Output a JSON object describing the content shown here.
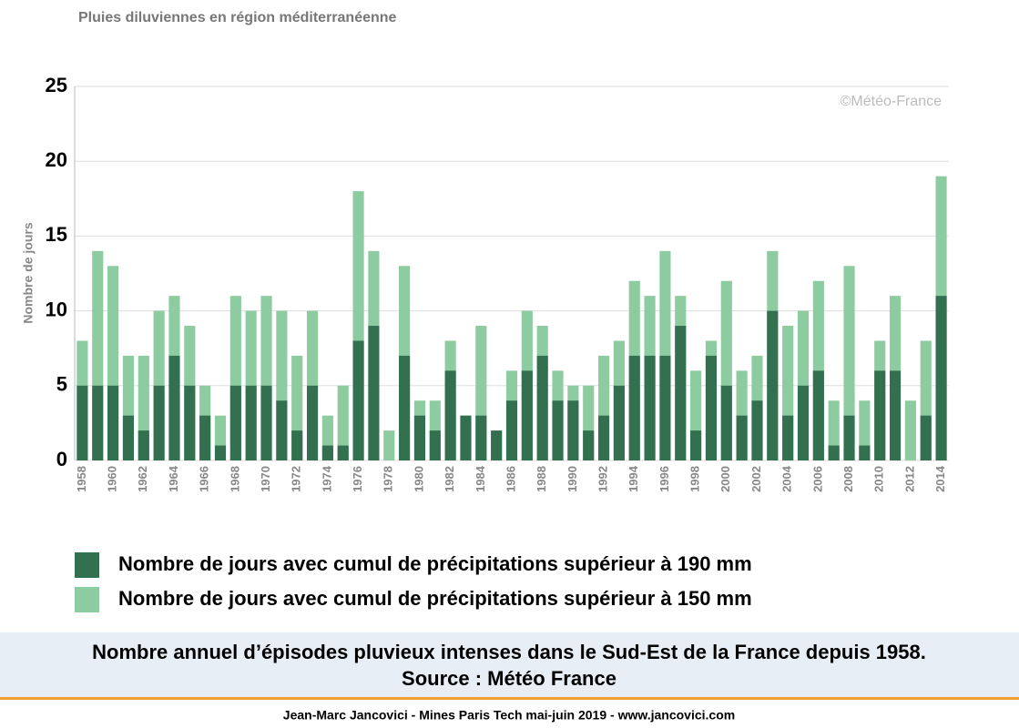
{
  "chart_data": {
    "type": "bar",
    "title": "Pluies diluviennes en région méditerranéenne",
    "y_label": "Nombre de jours",
    "watermark": "©Météo-France",
    "categories": [
      "1958",
      null,
      "1960",
      null,
      "1962",
      null,
      "1964",
      null,
      "1966",
      null,
      "1968",
      null,
      "1970",
      null,
      "1972",
      null,
      "1974",
      null,
      "1976",
      null,
      "1978",
      null,
      "1980",
      null,
      "1982",
      null,
      "1984",
      null,
      "1986",
      null,
      "1988",
      null,
      "1990",
      null,
      "1992",
      null,
      "1994",
      null,
      "1996",
      null,
      "1998",
      null,
      "2000",
      null,
      "2002",
      null,
      "2004",
      null,
      "2006",
      null,
      "2008",
      null,
      "2010",
      null,
      "2012",
      null,
      "2014"
    ],
    "series": [
      {
        "name": "Nombre de jours avec cumul de précipitations supérieur à 190 mm",
        "color": "#33704f",
        "values": [
          5,
          5,
          5,
          3,
          2,
          5,
          7,
          5,
          3,
          1,
          5,
          5,
          5,
          4,
          2,
          5,
          1,
          1,
          8,
          9,
          0,
          7,
          3,
          2,
          6,
          3,
          3,
          2,
          4,
          6,
          7,
          4,
          4,
          2,
          3,
          5,
          7,
          7,
          7,
          9,
          2,
          7,
          5,
          3,
          4,
          10,
          3,
          5,
          6,
          1,
          3,
          1,
          6,
          6,
          0,
          3,
          11
        ]
      },
      {
        "name": "Nombre de jours avec cumul de précipitations supérieur à 150 mm",
        "color": "#8dcba0",
        "values": [
          8,
          14,
          13,
          7,
          7,
          10,
          11,
          9,
          5,
          3,
          11,
          10,
          11,
          10,
          7,
          10,
          3,
          5,
          18,
          14,
          2,
          13,
          4,
          4,
          8,
          3,
          9,
          2,
          6,
          10,
          9,
          6,
          5,
          5,
          7,
          8,
          12,
          11,
          14,
          11,
          6,
          8,
          12,
          6,
          7,
          14,
          9,
          10,
          12,
          4,
          13,
          4,
          8,
          11,
          4,
          8,
          19
        ]
      }
    ],
    "ylim": [
      0,
      25
    ],
    "yticks": [
      0,
      5,
      10,
      15,
      20,
      25
    ],
    "grid": true,
    "overlap": true
  },
  "caption": [
    "Nombre annuel d’épisodes pluvieux intenses dans le Sud-Est de la France depuis 1958.",
    "Source : Météo France"
  ],
  "footer": "Jean-Marc Jancovici - Mines Paris Tech mai-juin 2019 - www.jancovici.com"
}
